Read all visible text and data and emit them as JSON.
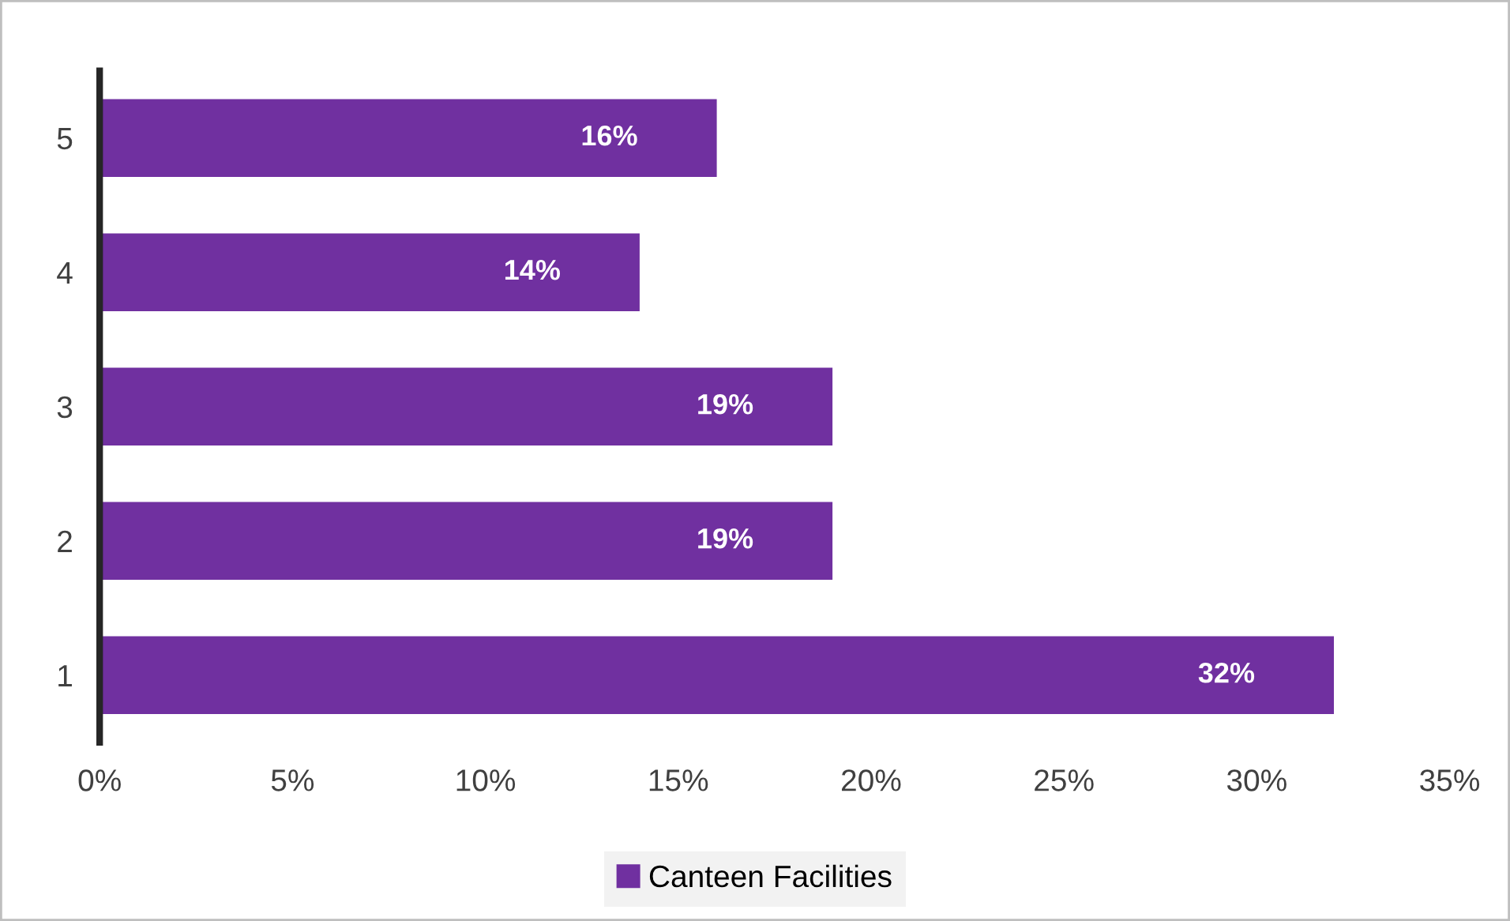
{
  "chart_data": {
    "type": "bar",
    "orientation": "horizontal",
    "categories": [
      "5",
      "4",
      "3",
      "2",
      "1"
    ],
    "series": [
      {
        "name": "Canteen Facilities",
        "color": "#7030a0",
        "values": [
          16,
          14,
          19,
          19,
          32
        ],
        "value_labels": [
          "16%",
          "14%",
          "19%",
          "19%",
          "32%"
        ]
      }
    ],
    "xlim": [
      0,
      35
    ],
    "xticks": [
      {
        "value": 0,
        "label": "0%"
      },
      {
        "value": 5,
        "label": "5%"
      },
      {
        "value": 10,
        "label": "10%"
      },
      {
        "value": 15,
        "label": "15%"
      },
      {
        "value": 20,
        "label": "20%"
      },
      {
        "value": 25,
        "label": "25%"
      },
      {
        "value": 30,
        "label": "30%"
      },
      {
        "value": 35,
        "label": "35%"
      }
    ],
    "grid": false,
    "legend": "bottom"
  }
}
